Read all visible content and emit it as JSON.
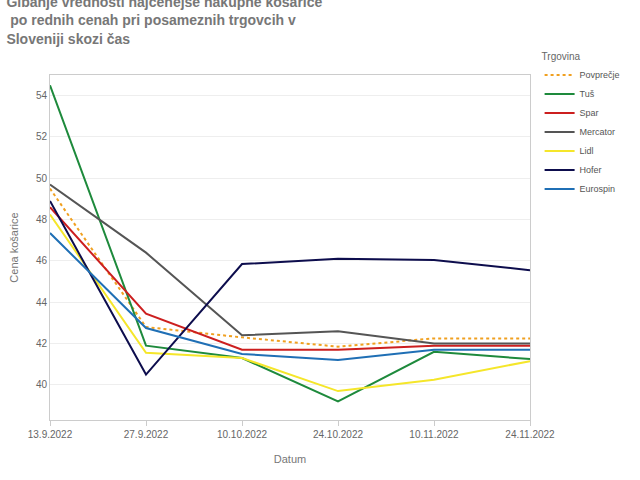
{
  "chart_data": {
    "type": "line",
    "title": "Gibanje vrednosti najcenejše nakupne košarice\n po rednih cenah pri posameznih trgovcih v\nSloveniji skozi čas",
    "x_label": "Datum",
    "y_label": "Cena košarice",
    "legend_title": "Trgovina",
    "legend": "top-right",
    "grid": true,
    "categories": [
      "13.9.2022",
      "27.9.2022",
      "10.10.2022",
      "24.10.2022",
      "10.11.2022",
      "24.11.2022"
    ],
    "ylim": [
      38.3,
      55
    ],
    "yticks": [
      40,
      42,
      44,
      46,
      48,
      50,
      52,
      54
    ],
    "series": [
      {
        "name": "Povprečje",
        "color": "#f0a020",
        "line_style": "dotted",
        "values": [
          49.5,
          42.8,
          42.3,
          41.85,
          42.25,
          42.25
        ]
      },
      {
        "name": "Tuš",
        "color": "#1e8a3c",
        "line_style": "solid",
        "values": [
          54.5,
          41.9,
          41.3,
          39.2,
          41.6,
          41.25
        ]
      },
      {
        "name": "Spar",
        "color": "#cc1f1f",
        "line_style": "solid",
        "values": [
          48.6,
          43.45,
          41.7,
          41.7,
          41.9,
          41.9
        ]
      },
      {
        "name": "Mercator",
        "color": "#555555",
        "line_style": "solid",
        "values": [
          49.7,
          46.4,
          42.4,
          42.6,
          42.0,
          42.0
        ]
      },
      {
        "name": "Lidl",
        "color": "#f5e62a",
        "line_style": "solid",
        "values": [
          48.25,
          41.55,
          41.3,
          39.7,
          40.25,
          41.15
        ]
      },
      {
        "name": "Hofer",
        "color": "#0d0d4d",
        "line_style": "solid",
        "values": [
          48.9,
          40.5,
          45.85,
          46.1,
          46.05,
          45.55
        ]
      },
      {
        "name": "Eurospin",
        "color": "#1f6fb5",
        "line_style": "solid",
        "values": [
          47.35,
          42.75,
          41.5,
          41.2,
          41.7,
          41.7
        ]
      }
    ]
  }
}
